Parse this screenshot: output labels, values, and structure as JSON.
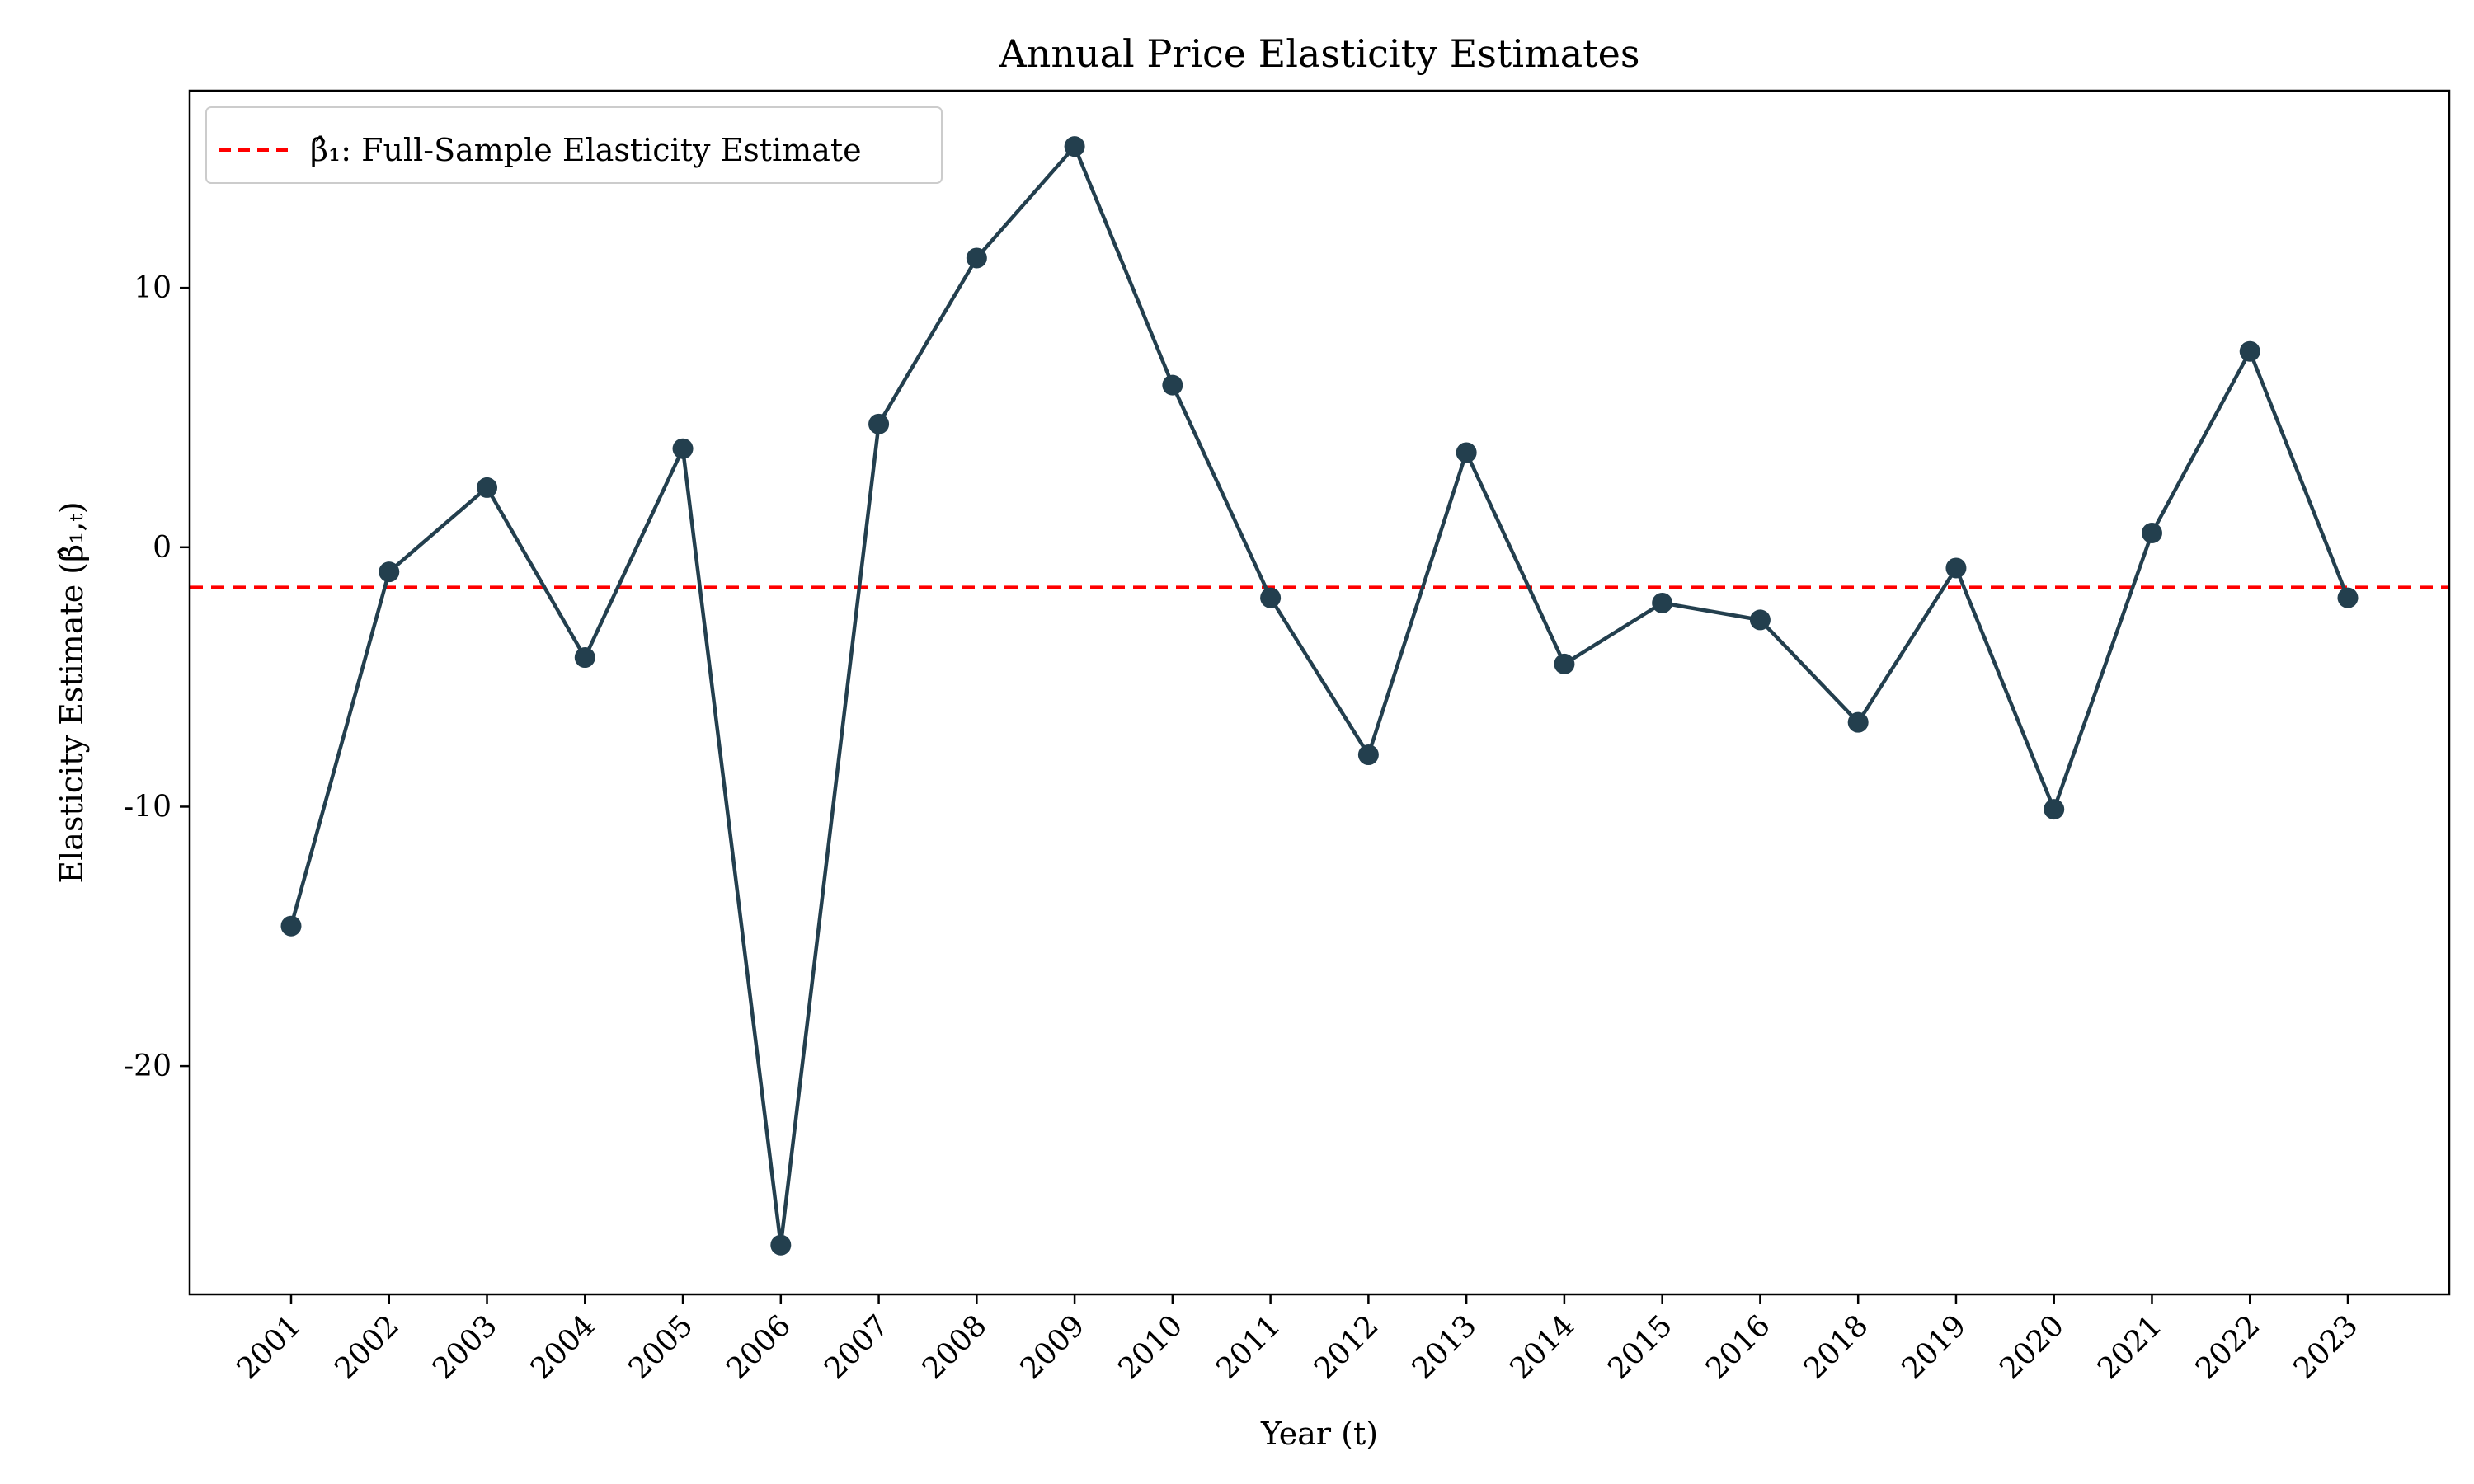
{
  "chart_data": {
    "type": "line",
    "title": "Annual Price Elasticity Estimates",
    "xlabel": "Year (t)",
    "ylabel": "Elasticity Estimate (β̂₁,ₜ)",
    "categories": [
      "2001",
      "2002",
      "2003",
      "2004",
      "2005",
      "2006",
      "2007",
      "2008",
      "2009",
      "2010",
      "2011",
      "2012",
      "2013",
      "2014",
      "2015",
      "2016",
      "2018",
      "2019",
      "2020",
      "2021",
      "2022",
      "2023"
    ],
    "series": [
      {
        "values": [
          -14.6,
          -0.95,
          2.3,
          -4.25,
          3.8,
          -26.9,
          4.75,
          11.15,
          15.45,
          6.25,
          -1.95,
          -8.0,
          3.65,
          -4.5,
          -2.15,
          -2.8,
          -6.75,
          -0.8,
          -10.1,
          0.55,
          7.55,
          -1.95
        ],
        "color": "#233f4e",
        "marker": "circle"
      }
    ],
    "reference_line": {
      "label": "β̂₁: Full-Sample Elasticity Estimate",
      "value": -1.55,
      "color": "#ff0000",
      "style": "dashed"
    },
    "y_ticks": [
      10,
      0,
      -10,
      -20
    ],
    "y_tick_labels": [
      "10",
      "0",
      "-10",
      "-20"
    ],
    "ylim": [
      -28.8,
      17.6
    ],
    "grid": false,
    "legend_position": "upper-left"
  }
}
